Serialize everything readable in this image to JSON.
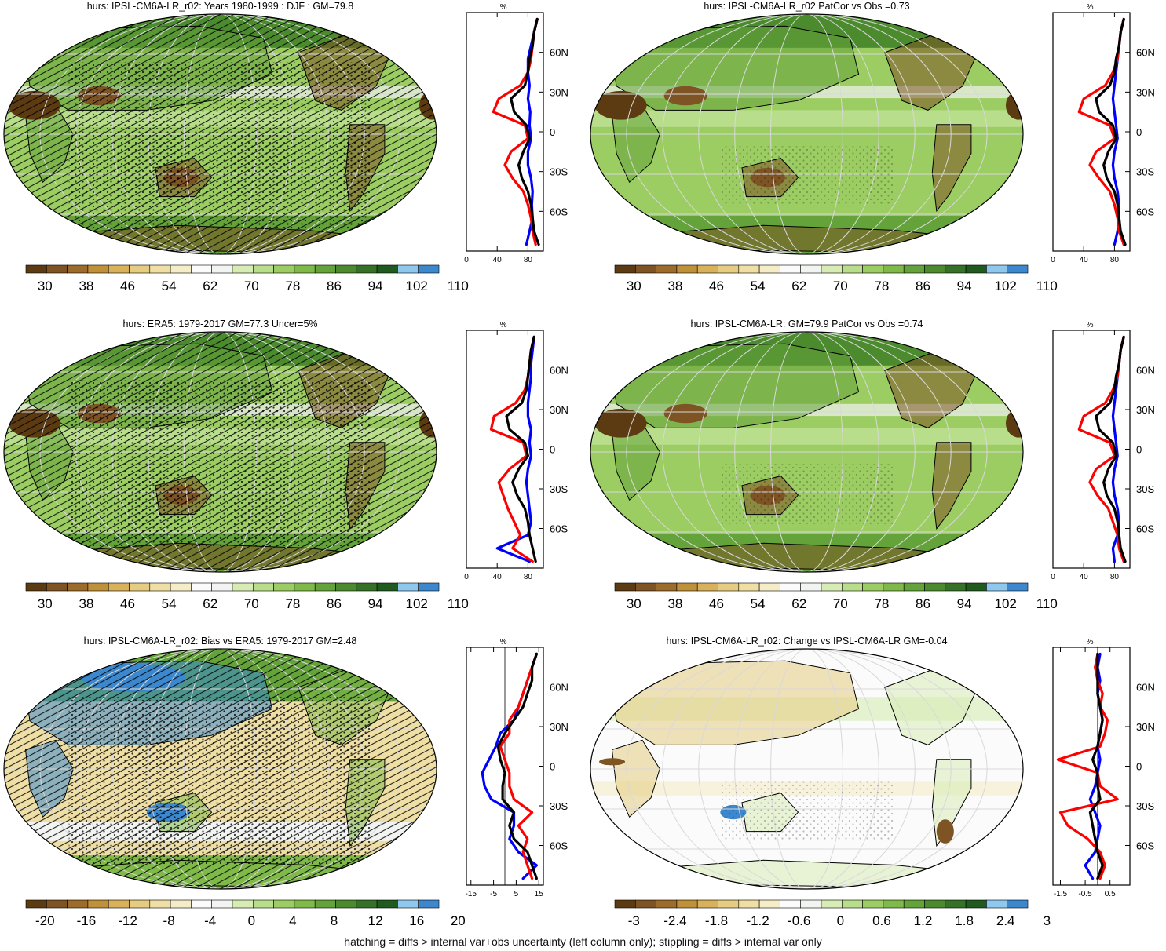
{
  "footnote": "hatching = diffs > internal var+obs uncertainty (left column only); stippling = diffs > internal var only",
  "colors": {
    "brown_to_blue_scale": [
      "#5d3b12",
      "#7e5424",
      "#9d6b2a",
      "#c09138",
      "#d8b15a",
      "#e6cc80",
      "#efdfa4",
      "#f5edc8",
      "#fbfbfb",
      "#f2f4f2",
      "#d7ecb4",
      "#b9de8b",
      "#9ccd63",
      "#7fba49",
      "#64a33a",
      "#4b8b2e",
      "#357227",
      "#205a1e",
      "#8fc8ee",
      "#3b88cf"
    ],
    "line_model": "#0000ff",
    "line_obs_low": "#ff0000",
    "line_mean": "#000000",
    "land_outline": "#000000",
    "graticule": "#d8d8d8"
  },
  "chart_data": [
    {
      "type": "heatmap",
      "title": "hurs: IPSL-CM6A-LR_r02: Years 1980-1999 : DJF : GM=79.8",
      "field": "absolute",
      "colorbar": {
        "labels": [
          "30",
          "38",
          "46",
          "54",
          "62",
          "70",
          "78",
          "86",
          "94",
          "102",
          "110"
        ]
      },
      "profile": {
        "unit_label": "%",
        "xticks": [
          "0",
          "40",
          "80"
        ],
        "xlim": [
          0,
          100
        ],
        "ylim": [
          -90,
          90
        ],
        "yticks": [
          "60N",
          "30N",
          "0",
          "30S",
          "60S"
        ],
        "lat": [
          -85,
          -75,
          -65,
          -55,
          -45,
          -35,
          -25,
          -15,
          -5,
          5,
          15,
          25,
          35,
          45,
          55,
          65,
          75,
          85
        ],
        "series": [
          {
            "color": "blue",
            "values": [
              78,
              82,
              86,
              85,
              86,
              84,
              80,
              80,
              84,
              82,
              83,
              80,
              82,
              80,
              80,
              84,
              88,
              92
            ]
          },
          {
            "color": "red",
            "values": [
              90,
              86,
              84,
              80,
              74,
              60,
              50,
              58,
              80,
              76,
              35,
              42,
              70,
              80,
              84,
              86,
              88,
              92
            ]
          },
          {
            "color": "black",
            "values": [
              94,
              88,
              86,
              84,
              80,
              72,
              68,
              74,
              82,
              78,
              62,
              58,
              76,
              80,
              82,
              86,
              88,
              92
            ]
          }
        ]
      }
    },
    {
      "type": "heatmap",
      "title": "hurs: IPSL-CM6A-LR_r02 PatCor vs Obs =0.73",
      "field": "absolute",
      "colorbar": {
        "labels": [
          "30",
          "38",
          "46",
          "54",
          "62",
          "70",
          "78",
          "86",
          "94",
          "102",
          "110"
        ]
      },
      "profile": {
        "unit_label": "%",
        "xticks": [
          "0",
          "40",
          "80"
        ],
        "xlim": [
          0,
          100
        ],
        "ylim": [
          -90,
          90
        ],
        "yticks": [
          "60N",
          "30N",
          "0",
          "30S",
          "60S"
        ],
        "lat": [
          -85,
          -75,
          -65,
          -55,
          -45,
          -35,
          -25,
          -15,
          -5,
          5,
          15,
          25,
          35,
          45,
          55,
          65,
          75,
          85
        ],
        "series": [
          {
            "color": "blue",
            "values": [
              80,
              84,
              86,
              86,
              84,
              80,
              78,
              80,
              84,
              82,
              80,
              78,
              80,
              82,
              84,
              86,
              88,
              92
            ]
          },
          {
            "color": "red",
            "values": [
              92,
              86,
              84,
              80,
              74,
              60,
              48,
              56,
              80,
              74,
              34,
              40,
              68,
              78,
              84,
              86,
              88,
              92
            ]
          },
          {
            "color": "black",
            "values": [
              94,
              88,
              86,
              84,
              80,
              70,
              66,
              72,
              82,
              78,
              60,
              56,
              74,
              80,
              82,
              86,
              88,
              92
            ]
          }
        ]
      }
    },
    {
      "type": "heatmap",
      "title": "hurs: ERA5: 1979-2017 GM=77.3 Uncer=5%",
      "field": "absolute",
      "colorbar": {
        "labels": [
          "30",
          "38",
          "46",
          "54",
          "62",
          "70",
          "78",
          "86",
          "94",
          "102",
          "110"
        ]
      },
      "profile": {
        "unit_label": "%",
        "xticks": [
          "0",
          "40",
          "80"
        ],
        "xlim": [
          0,
          100
        ],
        "ylim": [
          -90,
          90
        ],
        "yticks": [
          "60N",
          "30N",
          "0",
          "30S",
          "60S"
        ],
        "lat": [
          -85,
          -75,
          -65,
          -55,
          -45,
          -35,
          -25,
          -15,
          -5,
          5,
          15,
          25,
          35,
          45,
          55,
          65,
          75,
          85
        ],
        "series": [
          {
            "color": "blue",
            "values": [
              82,
              40,
              80,
              84,
              82,
              80,
              78,
              80,
              84,
              82,
              84,
              80,
              80,
              82,
              84,
              84,
              86,
              88
            ]
          },
          {
            "color": "red",
            "values": [
              86,
              60,
              70,
              62,
              54,
              48,
              42,
              56,
              78,
              74,
              32,
              36,
              64,
              76,
              80,
              82,
              84,
              88
            ]
          },
          {
            "color": "black",
            "values": [
              90,
              86,
              82,
              80,
              76,
              66,
              60,
              68,
              80,
              76,
              56,
              52,
              72,
              78,
              80,
              82,
              84,
              88
            ]
          }
        ]
      }
    },
    {
      "type": "heatmap",
      "title": "hurs: IPSL-CM6A-LR: GM=79.9 PatCor vs Obs =0.74",
      "field": "absolute",
      "colorbar": {
        "labels": [
          "30",
          "38",
          "46",
          "54",
          "62",
          "70",
          "78",
          "86",
          "94",
          "102",
          "110"
        ]
      },
      "profile": {
        "unit_label": "%",
        "xticks": [
          "0",
          "40",
          "80"
        ],
        "xlim": [
          0,
          100
        ],
        "ylim": [
          -90,
          90
        ],
        "yticks": [
          "60N",
          "30N",
          "0",
          "30S",
          "60S"
        ],
        "lat": [
          -85,
          -75,
          -65,
          -55,
          -45,
          -35,
          -25,
          -15,
          -5,
          5,
          15,
          25,
          35,
          45,
          55,
          65,
          75,
          85
        ],
        "series": [
          {
            "color": "blue",
            "values": [
              80,
              78,
              84,
              86,
              84,
              80,
              78,
              80,
              84,
              82,
              80,
              78,
              80,
              82,
              84,
              86,
              88,
              92
            ]
          },
          {
            "color": "red",
            "values": [
              92,
              86,
              84,
              78,
              72,
              58,
              48,
              56,
              80,
              74,
              34,
              40,
              68,
              78,
              84,
              86,
              88,
              92
            ]
          },
          {
            "color": "black",
            "values": [
              94,
              88,
              86,
              84,
              80,
              70,
              66,
              72,
              82,
              78,
              60,
              56,
              74,
              80,
              82,
              86,
              88,
              92
            ]
          }
        ]
      }
    },
    {
      "type": "heatmap",
      "title": "hurs: IPSL-CM6A-LR_r02: Bias vs ERA5: 1979-2017 GM=2.48",
      "field": "bias",
      "colorbar": {
        "labels": [
          "-20",
          "-16",
          "-12",
          "-8",
          "-4",
          "0",
          "4",
          "8",
          "12",
          "16",
          "20"
        ]
      },
      "profile": {
        "unit_label": "%",
        "xticks": [
          "-15",
          "-5",
          "5",
          "15"
        ],
        "xlim": [
          -17,
          17
        ],
        "ylim": [
          -90,
          90
        ],
        "yticks": [
          "60N",
          "30N",
          "0",
          "30S",
          "60S"
        ],
        "lat": [
          -85,
          -75,
          -65,
          -55,
          -45,
          -35,
          -25,
          -15,
          -5,
          5,
          15,
          25,
          35,
          45,
          55,
          65,
          75,
          85
        ],
        "series": [
          {
            "color": "blue",
            "values": [
              8,
              14,
              6,
              2,
              4,
              4,
              -6,
              -9,
              -10,
              -7,
              -4,
              -2,
              4,
              6,
              8,
              10,
              12,
              14
            ]
          },
          {
            "color": "red",
            "values": [
              12,
              10,
              8,
              10,
              6,
              12,
              4,
              2,
              2,
              0,
              -2,
              2,
              2,
              6,
              8,
              10,
              12,
              14
            ]
          },
          {
            "color": "black",
            "values": [
              14,
              12,
              10,
              4,
              2,
              4,
              -1,
              -1,
              0,
              -2,
              -3,
              0,
              4,
              8,
              10,
              12,
              12,
              14
            ]
          }
        ]
      }
    },
    {
      "type": "heatmap",
      "title": "hurs: IPSL-CM6A-LR_r02: Change vs IPSL-CM6A-LR GM=-0.04",
      "field": "change",
      "colorbar": {
        "labels": [
          "-3",
          "-2.4",
          "-1.8",
          "-1.2",
          "-0.6",
          "0",
          "0.6",
          "1.2",
          "1.8",
          "2.4",
          "3"
        ]
      },
      "profile": {
        "unit_label": "%",
        "xticks": [
          "-1.5",
          "-0.5",
          "0.5"
        ],
        "xlim": [
          -1.8,
          1.3
        ],
        "ylim": [
          -90,
          90
        ],
        "yticks": [
          "60N",
          "30N",
          "0",
          "30S",
          "60S"
        ],
        "lat": [
          -85,
          -75,
          -65,
          -55,
          -45,
          -35,
          -25,
          -15,
          -5,
          5,
          15,
          25,
          35,
          45,
          55,
          65,
          75,
          85
        ],
        "series": [
          {
            "color": "blue",
            "values": [
              -0.2,
              -0.5,
              -0.1,
              0.0,
              0.1,
              -0.1,
              -0.3,
              -0.1,
              0.0,
              0.1,
              0.0,
              0.1,
              0.2,
              0.1,
              0.0,
              0.1,
              0.0,
              0.1
            ]
          },
          {
            "color": "red",
            "values": [
              0.1,
              0.3,
              0.1,
              -0.4,
              -1.2,
              -1.5,
              0.8,
              0.1,
              0.0,
              -1.6,
              0.1,
              0.3,
              0.4,
              0.1,
              0.2,
              0.0,
              -0.1,
              0.0
            ]
          },
          {
            "color": "black",
            "values": [
              0.0,
              0.2,
              0.0,
              -0.1,
              -0.2,
              -0.3,
              0.1,
              0.0,
              0.0,
              -0.2,
              0.0,
              0.1,
              0.2,
              0.1,
              0.0,
              0.0,
              0.0,
              0.0
            ]
          }
        ]
      }
    }
  ]
}
